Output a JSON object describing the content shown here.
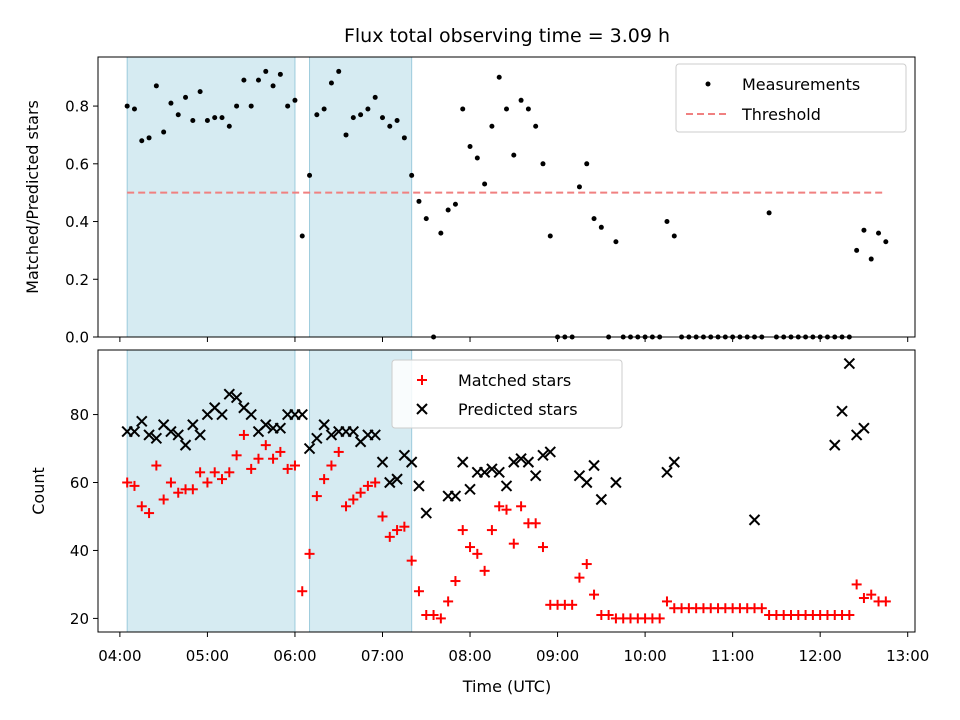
{
  "chart_data": [
    {
      "type": "scatter",
      "title": "Flux total observing time = 3.09 h",
      "xlabel": "",
      "ylabel": "Matched/Predicted stars",
      "xlim": [
        "03:45",
        "13:05"
      ],
      "ylim": [
        0,
        0.97
      ],
      "xticks": [
        "04:00",
        "05:00",
        "06:00",
        "07:00",
        "08:00",
        "09:00",
        "10:00",
        "11:00",
        "12:00",
        "13:00"
      ],
      "yticks": [
        "0.0",
        "0.2",
        "0.4",
        "0.6",
        "0.8"
      ],
      "shaded_intervals": [
        [
          "04:05",
          "06:00"
        ],
        [
          "06:10",
          "07:20"
        ]
      ],
      "legend_position": "upper right",
      "series": [
        {
          "name": "Measurements",
          "marker": "dot",
          "color": "#000000",
          "x": [
            "04:05",
            "04:10",
            "04:15",
            "04:20",
            "04:25",
            "04:30",
            "04:35",
            "04:40",
            "04:45",
            "04:50",
            "04:55",
            "05:00",
            "05:05",
            "05:10",
            "05:15",
            "05:20",
            "05:25",
            "05:30",
            "05:35",
            "05:40",
            "05:45",
            "05:50",
            "05:55",
            "06:00",
            "06:05",
            "06:10",
            "06:15",
            "06:20",
            "06:25",
            "06:30",
            "06:35",
            "06:40",
            "06:45",
            "06:50",
            "06:55",
            "07:00",
            "07:05",
            "07:10",
            "07:15",
            "07:20",
            "07:25",
            "07:30",
            "07:35",
            "07:40",
            "07:45",
            "07:50",
            "07:55",
            "08:00",
            "08:05",
            "08:10",
            "08:15",
            "08:20",
            "08:25",
            "08:30",
            "08:35",
            "08:40",
            "08:45",
            "08:50",
            "08:55",
            "09:00",
            "09:05",
            "09:10",
            "09:15",
            "09:20",
            "09:25",
            "09:30",
            "09:35",
            "09:40",
            "09:45",
            "09:50",
            "09:55",
            "10:00",
            "10:05",
            "10:10",
            "10:15",
            "10:20",
            "10:25",
            "10:30",
            "10:35",
            "10:40",
            "10:45",
            "10:50",
            "10:55",
            "11:00",
            "11:05",
            "11:10",
            "11:15",
            "11:20",
            "11:25",
            "11:30",
            "11:35",
            "11:40",
            "11:45",
            "11:50",
            "11:55",
            "12:00",
            "12:05",
            "12:10",
            "12:15",
            "12:20",
            "12:25",
            "12:30",
            "12:35",
            "12:40",
            "12:45"
          ],
          "y": [
            0.8,
            0.79,
            0.68,
            0.69,
            0.87,
            0.71,
            0.81,
            0.77,
            0.83,
            0.75,
            0.85,
            0.75,
            0.76,
            0.76,
            0.73,
            0.8,
            0.89,
            0.8,
            0.89,
            0.92,
            0.87,
            0.91,
            0.8,
            0.82,
            0.35,
            0.56,
            0.77,
            0.79,
            0.88,
            0.92,
            0.7,
            0.76,
            0.77,
            0.79,
            0.83,
            0.76,
            0.73,
            0.75,
            0.69,
            0.56,
            0.47,
            0.41,
            0.0,
            0.36,
            0.44,
            0.46,
            0.79,
            0.66,
            0.62,
            0.53,
            0.73,
            0.9,
            0.79,
            0.63,
            0.82,
            0.79,
            0.73,
            0.6,
            0.35,
            0.0,
            0.0,
            0.0,
            0.52,
            0.6,
            0.41,
            0.38,
            0.0,
            0.33,
            0.0,
            0.0,
            0.0,
            0.0,
            0.0,
            0.0,
            0.4,
            0.35,
            0.0,
            0.0,
            0.0,
            0.0,
            0.0,
            0.0,
            0.0,
            0.0,
            0.0,
            0.0,
            0.0,
            0.0,
            0.43,
            0.0,
            0.0,
            0.0,
            0.0,
            0.0,
            0.0,
            0.0,
            0.0,
            0.0,
            0.0,
            0.0,
            0.3,
            0.37,
            0.27,
            0.36,
            0.33
          ]
        },
        {
          "name": "Threshold",
          "style": "dashed",
          "color": "#f08080",
          "x": [
            "04:05",
            "12:45"
          ],
          "y": [
            0.5,
            0.5
          ]
        }
      ]
    },
    {
      "type": "scatter",
      "title": "",
      "xlabel": "Time (UTC)",
      "ylabel": "Count",
      "xlim": [
        "03:45",
        "13:05"
      ],
      "ylim": [
        16,
        99
      ],
      "xticks": [
        "04:00",
        "05:00",
        "06:00",
        "07:00",
        "08:00",
        "09:00",
        "10:00",
        "11:00",
        "12:00",
        "13:00"
      ],
      "yticks": [
        "20",
        "40",
        "60",
        "80"
      ],
      "shaded_intervals": [
        [
          "04:05",
          "06:00"
        ],
        [
          "06:10",
          "07:20"
        ]
      ],
      "legend_position": "upper center",
      "series": [
        {
          "name": "Matched stars",
          "marker": "plus",
          "color": "#ff0000",
          "x": [
            "04:05",
            "04:10",
            "04:15",
            "04:20",
            "04:25",
            "04:30",
            "04:35",
            "04:40",
            "04:45",
            "04:50",
            "04:55",
            "05:00",
            "05:05",
            "05:10",
            "05:15",
            "05:20",
            "05:25",
            "05:30",
            "05:35",
            "05:40",
            "05:45",
            "05:50",
            "05:55",
            "06:00",
            "06:05",
            "06:10",
            "06:15",
            "06:20",
            "06:25",
            "06:30",
            "06:35",
            "06:40",
            "06:45",
            "06:50",
            "06:55",
            "07:00",
            "07:05",
            "07:10",
            "07:15",
            "07:20",
            "07:25",
            "07:30",
            "07:35",
            "07:40",
            "07:45",
            "07:50",
            "07:55",
            "08:00",
            "08:05",
            "08:10",
            "08:15",
            "08:20",
            "08:25",
            "08:30",
            "08:35",
            "08:40",
            "08:45",
            "08:50",
            "08:55",
            "09:00",
            "09:05",
            "09:10",
            "09:15",
            "09:20",
            "09:25",
            "09:30",
            "09:35",
            "09:40",
            "09:45",
            "09:50",
            "09:55",
            "10:00",
            "10:05",
            "10:10",
            "10:15",
            "10:20",
            "10:25",
            "10:30",
            "10:35",
            "10:40",
            "10:45",
            "10:50",
            "10:55",
            "11:00",
            "11:05",
            "11:10",
            "11:15",
            "11:20",
            "11:25",
            "11:30",
            "11:35",
            "11:40",
            "11:45",
            "11:50",
            "11:55",
            "12:00",
            "12:05",
            "12:10",
            "12:15",
            "12:20",
            "12:25",
            "12:30",
            "12:35",
            "12:40",
            "12:45"
          ],
          "y": [
            60,
            59,
            53,
            51,
            65,
            55,
            60,
            57,
            58,
            58,
            63,
            60,
            63,
            61,
            63,
            68,
            74,
            64,
            67,
            71,
            67,
            69,
            64,
            65,
            28,
            39,
            56,
            61,
            65,
            69,
            53,
            55,
            57,
            59,
            60,
            50,
            44,
            46,
            47,
            37,
            28,
            21,
            21,
            20,
            25,
            31,
            46,
            41,
            39,
            34,
            46,
            53,
            52,
            42,
            53,
            48,
            48,
            41,
            24,
            24,
            24,
            24,
            32,
            36,
            27,
            21,
            21,
            20,
            20,
            20,
            20,
            20,
            20,
            20,
            25,
            23,
            23,
            23,
            23,
            23,
            23,
            23,
            23,
            23,
            23,
            23,
            23,
            23,
            21,
            21,
            21,
            21,
            21,
            21,
            21,
            21,
            21,
            21,
            21,
            21,
            30,
            26,
            27,
            25,
            25
          ]
        },
        {
          "name": "Predicted stars",
          "marker": "x",
          "color": "#000000",
          "x": [
            "04:05",
            "04:10",
            "04:15",
            "04:20",
            "04:25",
            "04:30",
            "04:35",
            "04:40",
            "04:45",
            "04:50",
            "04:55",
            "05:00",
            "05:05",
            "05:10",
            "05:15",
            "05:20",
            "05:25",
            "05:30",
            "05:35",
            "05:40",
            "05:45",
            "05:50",
            "05:55",
            "06:00",
            "06:05",
            "06:10",
            "06:15",
            "06:20",
            "06:25",
            "06:30",
            "06:35",
            "06:40",
            "06:45",
            "06:50",
            "06:55",
            "07:00",
            "07:05",
            "07:10",
            "07:15",
            "07:20",
            "07:25",
            "07:30",
            "07:45",
            "07:50",
            "07:55",
            "08:00",
            "08:05",
            "08:10",
            "08:15",
            "08:20",
            "08:25",
            "08:30",
            "08:35",
            "08:40",
            "08:45",
            "08:50",
            "08:55",
            "09:15",
            "09:20",
            "09:25",
            "09:30",
            "09:40",
            "10:15",
            "10:20",
            "11:15",
            "12:10",
            "12:15",
            "12:20",
            "12:25",
            "12:30"
          ],
          "y": [
            75,
            75,
            78,
            74,
            73,
            77,
            75,
            74,
            71,
            77,
            74,
            80,
            82,
            80,
            86,
            85,
            82,
            80,
            75,
            77,
            76,
            76,
            80,
            80,
            80,
            70,
            73,
            77,
            74,
            75,
            75,
            75,
            72,
            74,
            74,
            66,
            60,
            61,
            68,
            66,
            59,
            51,
            56,
            56,
            66,
            58,
            63,
            63,
            64,
            63,
            59,
            66,
            67,
            66,
            62,
            68,
            69,
            62,
            60,
            65,
            55,
            60,
            63,
            66,
            49,
            71,
            81,
            95,
            74,
            76
          ]
        }
      ]
    }
  ]
}
